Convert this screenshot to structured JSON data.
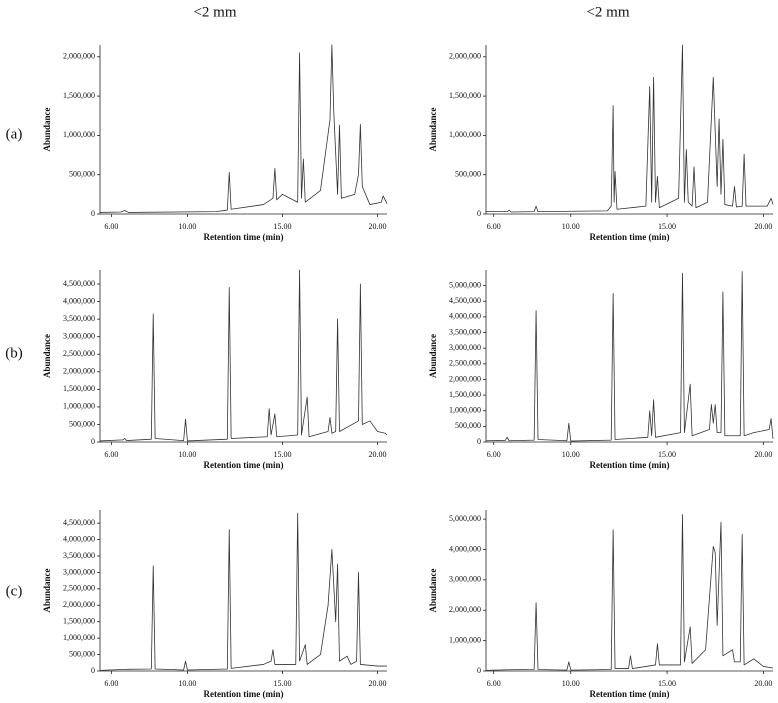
{
  "column_headers": [
    "<2 mm",
    "<2 mm"
  ],
  "row_labels": [
    "(a)",
    "(b)",
    "(c)"
  ],
  "chart_data": [
    {
      "type": "line",
      "xlabel": "Retention time (min)",
      "ylabel": "Abundance",
      "color": "#333333",
      "xlim": [
        5.4,
        20.5
      ],
      "ylim": [
        0,
        2150000
      ],
      "xticks": [
        {
          "value": 6,
          "label": "6.00"
        },
        {
          "value": 10,
          "label": "10.00"
        },
        {
          "value": 15,
          "label": "15.00"
        },
        {
          "value": 20,
          "label": "20.00"
        }
      ],
      "yticks": [
        0,
        {
          "value": 500000,
          "label": "500,000"
        },
        {
          "value": 1000000,
          "label": "1,000,000"
        },
        {
          "value": 1500000,
          "label": "1,500,000"
        },
        {
          "value": 2000000,
          "label": "2,000,000"
        }
      ],
      "x": [
        5.4,
        6.5,
        6.7,
        6.9,
        11.5,
        12.1,
        12.2,
        12.3,
        14.0,
        14.5,
        14.6,
        14.7,
        15.0,
        15.8,
        15.9,
        16.0,
        16.1,
        16.2,
        17.0,
        17.5,
        17.6,
        17.7,
        17.9,
        18.0,
        18.1,
        18.8,
        19.0,
        19.1,
        19.2,
        19.6,
        20.2,
        20.3,
        20.5
      ],
      "values": [
        20000,
        25000,
        45000,
        20000,
        30000,
        50000,
        530000,
        60000,
        120000,
        200000,
        580000,
        180000,
        250000,
        150000,
        2050000,
        200000,
        700000,
        150000,
        300000,
        1200000,
        2150000,
        1300000,
        250000,
        1130000,
        200000,
        250000,
        500000,
        1140000,
        350000,
        120000,
        150000,
        230000,
        130000
      ]
    },
    {
      "type": "line",
      "xlabel": "Retention time (min)",
      "ylabel": "Abundance",
      "color": "#333333",
      "xlim": [
        5.6,
        20.5
      ],
      "ylim": [
        0,
        2150000
      ],
      "xticks": [
        {
          "value": 6,
          "label": "6.00"
        },
        {
          "value": 10,
          "label": "10.00"
        },
        {
          "value": 15,
          "label": "15.00"
        },
        {
          "value": 20,
          "label": "20.00"
        }
      ],
      "yticks": [
        0,
        {
          "value": 500000,
          "label": "500,000"
        },
        {
          "value": 1000000,
          "label": "1,000,000"
        },
        {
          "value": 1500000,
          "label": "1,500,000"
        },
        {
          "value": 2000000,
          "label": "2,000,000"
        }
      ],
      "x": [
        5.6,
        6.7,
        6.8,
        6.9,
        8.1,
        8.2,
        8.3,
        11.9,
        12.1,
        12.2,
        12.25,
        12.3,
        12.4,
        13.9,
        14.1,
        14.2,
        14.3,
        14.4,
        14.5,
        14.6,
        15.6,
        15.8,
        15.9,
        16.0,
        16.1,
        16.3,
        16.4,
        16.5,
        17.1,
        17.4,
        17.6,
        17.7,
        17.8,
        17.9,
        18.0,
        18.4,
        18.5,
        18.6,
        18.9,
        19.0,
        19.1,
        20.2,
        20.4,
        20.5
      ],
      "values": [
        30000,
        30000,
        50000,
        25000,
        30000,
        100000,
        30000,
        40000,
        100000,
        1380000,
        150000,
        540000,
        60000,
        100000,
        1620000,
        150000,
        1740000,
        150000,
        480000,
        80000,
        200000,
        2150000,
        150000,
        820000,
        150000,
        100000,
        600000,
        80000,
        150000,
        1740000,
        350000,
        1210000,
        250000,
        950000,
        120000,
        100000,
        350000,
        90000,
        100000,
        760000,
        100000,
        100000,
        200000,
        120000
      ]
    },
    {
      "type": "line",
      "xlabel": "Retention time (min)",
      "ylabel": "Abundance",
      "color": "#333333",
      "xlim": [
        5.4,
        20.5
      ],
      "ylim": [
        0,
        4900000
      ],
      "xticks": [
        {
          "value": 6,
          "label": "6.00"
        },
        {
          "value": 10,
          "label": "10.00"
        },
        {
          "value": 15,
          "label": "15.00"
        },
        {
          "value": 20,
          "label": "20.00"
        }
      ],
      "yticks": [
        0,
        {
          "value": 500000,
          "label": "500,000"
        },
        {
          "value": 1000000,
          "label": "1,000,000"
        },
        {
          "value": 1500000,
          "label": "1,500,000"
        },
        {
          "value": 2000000,
          "label": "2,000,000"
        },
        {
          "value": 2500000,
          "label": "2,500,000"
        },
        {
          "value": 3000000,
          "label": "3,000,000"
        },
        {
          "value": 3500000,
          "label": "3,500,000"
        },
        {
          "value": 4000000,
          "label": "4,000,000"
        },
        {
          "value": 4500000,
          "label": "4,500,000"
        }
      ],
      "x": [
        5.4,
        6.6,
        6.7,
        6.8,
        8.1,
        8.2,
        8.3,
        9.8,
        9.9,
        10.0,
        12.1,
        12.2,
        12.3,
        14.2,
        14.3,
        14.4,
        14.6,
        14.7,
        15.8,
        15.9,
        16.0,
        16.3,
        16.4,
        17.4,
        17.5,
        17.6,
        17.8,
        17.9,
        18.0,
        19.0,
        19.1,
        19.2,
        19.6,
        20.0,
        20.4,
        20.5
      ],
      "values": [
        30000,
        60000,
        100000,
        40000,
        80000,
        3650000,
        100000,
        40000,
        650000,
        30000,
        80000,
        4400000,
        100000,
        150000,
        950000,
        200000,
        800000,
        150000,
        200000,
        4900000,
        200000,
        1280000,
        150000,
        300000,
        700000,
        250000,
        300000,
        3500000,
        300000,
        600000,
        4500000,
        500000,
        600000,
        300000,
        250000,
        200000
      ]
    },
    {
      "type": "line",
      "xlabel": "Retention time (min)",
      "ylabel": "Abundance",
      "color": "#333333",
      "xlim": [
        5.6,
        20.5
      ],
      "ylim": [
        0,
        5500000
      ],
      "xticks": [
        {
          "value": 6,
          "label": "6.00"
        },
        {
          "value": 10,
          "label": "10.00"
        },
        {
          "value": 15,
          "label": "15.00"
        },
        {
          "value": 20,
          "label": "20.00"
        }
      ],
      "yticks": [
        0,
        {
          "value": 500000,
          "label": "500,000"
        },
        {
          "value": 1000000,
          "label": "1,000,000"
        },
        {
          "value": 1500000,
          "label": "1,500,000"
        },
        {
          "value": 2000000,
          "label": "2,000,000"
        },
        {
          "value": 2500000,
          "label": "2,500,000"
        },
        {
          "value": 3000000,
          "label": "3,000,000"
        },
        {
          "value": 3500000,
          "label": "3,500,000"
        },
        {
          "value": 4000000,
          "label": "4,000,000"
        },
        {
          "value": 4500000,
          "label": "4,500,000"
        },
        {
          "value": 5000000,
          "label": "5,000,000"
        }
      ],
      "x": [
        5.6,
        6.6,
        6.7,
        6.8,
        8.1,
        8.2,
        8.3,
        9.8,
        9.9,
        10.0,
        12.1,
        12.2,
        12.3,
        14.0,
        14.1,
        14.2,
        14.3,
        14.4,
        15.7,
        15.8,
        15.9,
        16.2,
        16.3,
        17.2,
        17.3,
        17.4,
        17.5,
        17.6,
        17.8,
        17.9,
        18.0,
        18.8,
        18.9,
        19.0,
        19.5,
        20.3,
        20.4,
        20.5
      ],
      "values": [
        40000,
        50000,
        150000,
        40000,
        60000,
        4200000,
        80000,
        40000,
        600000,
        30000,
        60000,
        4750000,
        80000,
        150000,
        1000000,
        200000,
        1350000,
        150000,
        300000,
        5400000,
        300000,
        1850000,
        200000,
        400000,
        1200000,
        600000,
        1200000,
        300000,
        300000,
        4800000,
        200000,
        200000,
        5450000,
        200000,
        300000,
        400000,
        750000,
        100000
      ]
    },
    {
      "type": "line",
      "xlabel": "Retention time (min)",
      "ylabel": "Abundance",
      "color": "#333333",
      "xlim": [
        5.4,
        20.5
      ],
      "ylim": [
        0,
        4900000
      ],
      "xticks": [
        {
          "value": 6,
          "label": "6.00"
        },
        {
          "value": 10,
          "label": "10.00"
        },
        {
          "value": 15,
          "label": "15.00"
        },
        {
          "value": 20,
          "label": "20.00"
        }
      ],
      "yticks": [
        0,
        {
          "value": 500000,
          "label": "500,000"
        },
        {
          "value": 1000000,
          "label": "1,000,000"
        },
        {
          "value": 1500000,
          "label": "1,500,000"
        },
        {
          "value": 2000000,
          "label": "2,000,000"
        },
        {
          "value": 2500000,
          "label": "2,500,000"
        },
        {
          "value": 3000000,
          "label": "3,000,000"
        },
        {
          "value": 3500000,
          "label": "3,500,000"
        },
        {
          "value": 4000000,
          "label": "4,000,000"
        },
        {
          "value": 4500000,
          "label": "4,500,000"
        }
      ],
      "x": [
        5.4,
        6.7,
        8.1,
        8.2,
        8.3,
        9.8,
        9.9,
        10.0,
        12.1,
        12.2,
        12.3,
        14.0,
        14.4,
        14.5,
        14.6,
        15.7,
        15.8,
        15.9,
        16.2,
        16.3,
        17.0,
        17.4,
        17.6,
        17.8,
        17.9,
        18.0,
        18.4,
        18.6,
        18.9,
        19.0,
        19.1,
        20.0,
        20.5
      ],
      "values": [
        20000,
        50000,
        60000,
        3200000,
        60000,
        30000,
        300000,
        30000,
        60000,
        4300000,
        80000,
        200000,
        300000,
        650000,
        200000,
        200000,
        4800000,
        300000,
        800000,
        200000,
        500000,
        2000000,
        3700000,
        1500000,
        3250000,
        300000,
        450000,
        200000,
        300000,
        3000000,
        200000,
        150000,
        150000
      ]
    },
    {
      "type": "line",
      "xlabel": "Retention time (min)",
      "ylabel": "Abundance",
      "color": "#333333",
      "xlim": [
        5.6,
        20.5
      ],
      "ylim": [
        0,
        5300000
      ],
      "xticks": [
        {
          "value": 6,
          "label": "6.00"
        },
        {
          "value": 10,
          "label": "10.00"
        },
        {
          "value": 15,
          "label": "15.00"
        },
        {
          "value": 20,
          "label": "20.00"
        }
      ],
      "yticks": [
        0,
        {
          "value": 1000000,
          "label": "1,000,000"
        },
        {
          "value": 2000000,
          "label": "2,000,000"
        },
        {
          "value": 3000000,
          "label": "3,000,000"
        },
        {
          "value": 4000000,
          "label": "4,000,000"
        },
        {
          "value": 5000000,
          "label": "5,000,000"
        }
      ],
      "x": [
        5.6,
        6.7,
        8.1,
        8.2,
        8.3,
        9.8,
        9.9,
        10.0,
        12.1,
        12.2,
        12.3,
        13.0,
        13.1,
        13.2,
        14.4,
        14.5,
        14.6,
        15.7,
        15.8,
        15.9,
        16.2,
        16.3,
        17.0,
        17.4,
        17.5,
        17.6,
        17.8,
        17.9,
        18.4,
        18.5,
        18.8,
        18.9,
        19.0,
        19.5,
        20.0,
        20.5
      ],
      "values": [
        20000,
        40000,
        50000,
        2250000,
        50000,
        30000,
        300000,
        30000,
        50000,
        4650000,
        80000,
        80000,
        500000,
        80000,
        200000,
        900000,
        200000,
        200000,
        5150000,
        300000,
        1450000,
        250000,
        700000,
        4100000,
        3900000,
        1500000,
        4900000,
        500000,
        700000,
        300000,
        300000,
        4500000,
        200000,
        400000,
        150000,
        100000
      ]
    }
  ]
}
